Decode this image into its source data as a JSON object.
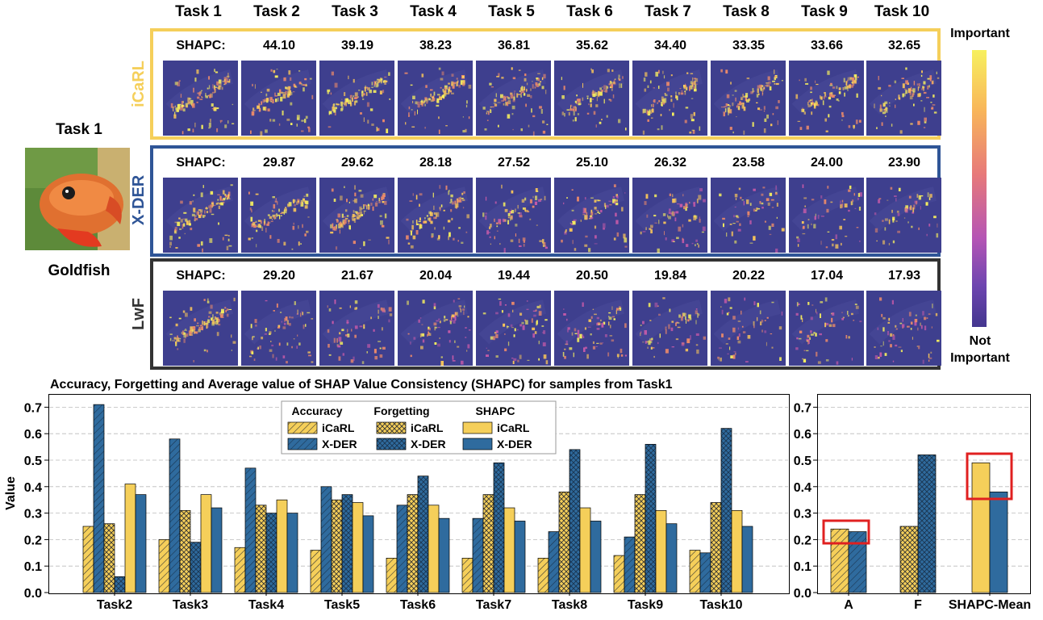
{
  "tasks": [
    "Task 1",
    "Task 2",
    "Task 3",
    "Task 4",
    "Task 5",
    "Task 6",
    "Task 7",
    "Task 8",
    "Task 9",
    "Task 10"
  ],
  "sample": {
    "task": "Task 1",
    "label": "Goldfish"
  },
  "colorbar": {
    "top_label": "Important",
    "bottom_label_1": "Not",
    "bottom_label_2": "Important"
  },
  "panels": [
    {
      "model": "iCaRL",
      "color": "#f5cf5a",
      "shapc_label": "SHAPC:",
      "shapc": [
        "44.10",
        "39.19",
        "38.23",
        "36.81",
        "35.62",
        "34.40",
        "33.35",
        "33.66",
        "32.65"
      ],
      "intensity": [
        1.0,
        0.95,
        0.92,
        0.9,
        0.88,
        0.86,
        0.84,
        0.84,
        0.82,
        0.8
      ]
    },
    {
      "model": "X-DER",
      "color": "#2f5597",
      "shapc_label": "SHAPC:",
      "shapc": [
        "29.87",
        "29.62",
        "28.18",
        "27.52",
        "25.10",
        "26.32",
        "23.58",
        "24.00",
        "23.90"
      ],
      "intensity": [
        0.95,
        0.9,
        0.85,
        0.78,
        0.6,
        0.55,
        0.5,
        0.25,
        0.25,
        0.22
      ]
    },
    {
      "model": "LwF",
      "color": "#333333",
      "shapc_label": "SHAPC:",
      "shapc": [
        "29.20",
        "21.67",
        "20.04",
        "19.44",
        "20.50",
        "19.84",
        "20.22",
        "17.04",
        "17.93"
      ],
      "intensity": [
        1.0,
        0.35,
        0.3,
        0.45,
        0.4,
        0.5,
        0.35,
        0.2,
        0.28,
        0.3
      ]
    }
  ],
  "legend": {
    "headers": [
      "Accuracy",
      "Forgetting",
      "SHAPC"
    ],
    "series_names": [
      "iCaRL",
      "X-DER",
      "iCaRL",
      "X-DER",
      "iCaRL",
      "X-DER"
    ]
  },
  "chart_data": [
    {
      "type": "bar",
      "title": "Accuracy, Forgetting and Average value of SHAP Value Consistency (SHAPC) for samples from Task1",
      "ylabel": "Value",
      "ylim": [
        0,
        0.75
      ],
      "yticks": [
        "0.0",
        "0.1",
        "0.2",
        "0.3",
        "0.4",
        "0.5",
        "0.6",
        "0.7"
      ],
      "categories": [
        "Task2",
        "Task3",
        "Task4",
        "Task5",
        "Task6",
        "Task7",
        "Task8",
        "Task9",
        "Task10"
      ],
      "grid": "horizontal dashed",
      "legend_position": "top-center",
      "series": [
        {
          "name": "Accuracy iCaRL",
          "values": [
            0.25,
            0.2,
            0.17,
            0.16,
            0.13,
            0.13,
            0.13,
            0.14,
            0.16
          ]
        },
        {
          "name": "Accuracy X-DER",
          "values": [
            0.71,
            0.58,
            0.47,
            0.4,
            0.33,
            0.28,
            0.23,
            0.21,
            0.15
          ]
        },
        {
          "name": "Forgetting iCaRL",
          "values": [
            0.26,
            0.31,
            0.33,
            0.35,
            0.37,
            0.37,
            0.38,
            0.37,
            0.34
          ]
        },
        {
          "name": "Forgetting X-DER",
          "values": [
            0.06,
            0.19,
            0.3,
            0.37,
            0.44,
            0.49,
            0.54,
            0.56,
            0.62
          ]
        },
        {
          "name": "SHAPC iCaRL",
          "values": [
            0.41,
            0.37,
            0.35,
            0.34,
            0.33,
            0.32,
            0.32,
            0.31,
            0.31
          ]
        },
        {
          "name": "SHAPC X-DER",
          "values": [
            0.37,
            0.32,
            0.3,
            0.29,
            0.28,
            0.27,
            0.27,
            0.26,
            0.25
          ]
        }
      ]
    },
    {
      "type": "bar",
      "ylim": [
        0,
        0.75
      ],
      "yticks": [
        "0.0",
        "0.1",
        "0.2",
        "0.3",
        "0.4",
        "0.5",
        "0.6",
        "0.7"
      ],
      "categories": [
        "A",
        "F",
        "SHAPC-Mean"
      ],
      "series": [
        {
          "name": "iCaRL",
          "values": [
            0.24,
            0.25,
            0.49
          ]
        },
        {
          "name": "X-DER",
          "values": [
            0.23,
            0.52,
            0.38
          ]
        }
      ],
      "highlight_boxes": [
        "A",
        "SHAPC-Mean"
      ]
    }
  ]
}
